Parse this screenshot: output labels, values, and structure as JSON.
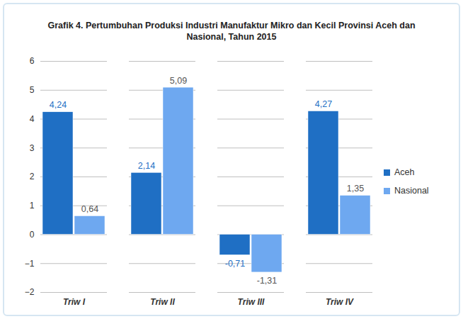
{
  "chart_data": {
    "type": "bar",
    "title": "Grafik 4.  Pertumbuhan Produksi Industri Manufaktur Mikro dan Kecil Provinsi Aceh dan Nasional, Tahun 2015",
    "categories": [
      "Triw I",
      "Triw II",
      "Triw III",
      "Triw IV"
    ],
    "series": [
      {
        "name": "Aceh",
        "color": "#1f6fc4",
        "values": [
          4.24,
          2.14,
          -0.71,
          4.27
        ],
        "value_labels": [
          "4,24",
          "2,14",
          "-0,71",
          "4,27"
        ]
      },
      {
        "name": "Nasional",
        "color": "#6ea8f0",
        "values": [
          0.64,
          5.09,
          -1.31,
          1.35
        ],
        "value_labels": [
          "0,64",
          "5,09",
          "-1,31",
          "1,35"
        ]
      }
    ],
    "ylim": [
      -2,
      6
    ],
    "yticks": [
      -2,
      -1,
      0,
      1,
      2,
      3,
      4,
      5,
      6
    ],
    "grid": true,
    "legend": "right",
    "data_labels": true
  }
}
